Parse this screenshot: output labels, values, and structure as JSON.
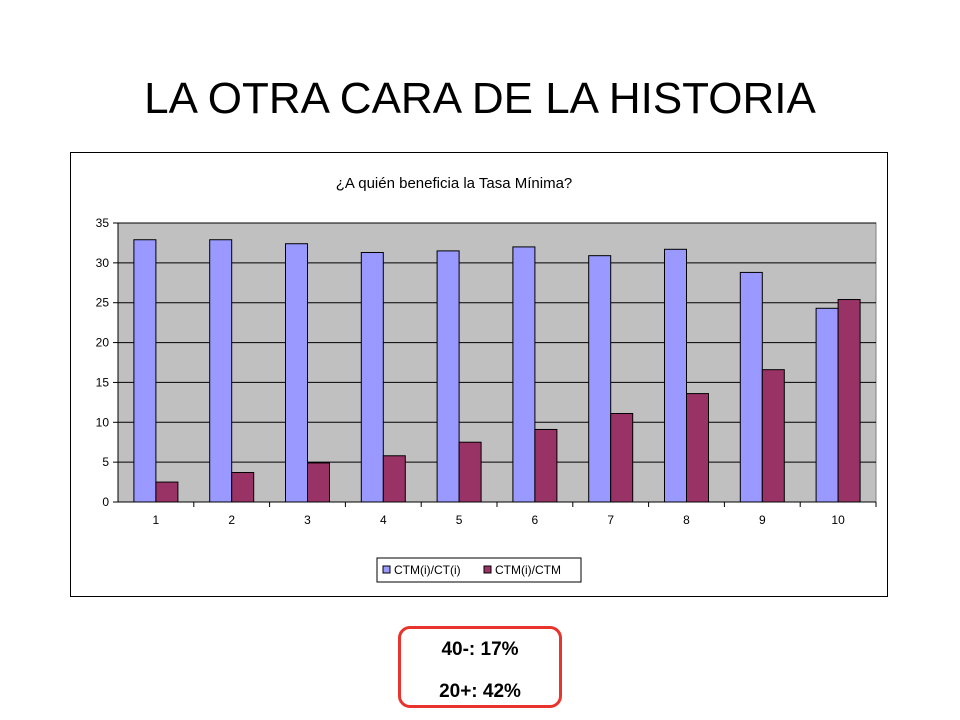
{
  "slide": {
    "title": "LA OTRA CARA DE LA HISTORIA"
  },
  "stats": {
    "line1": "40-: 17%",
    "line2": "20+: 42%"
  },
  "colors": {
    "series1": "#9999ff",
    "series2": "#993366",
    "plot_background": "#c0c0c0",
    "highlight_border": "#e8342c"
  },
  "chart_data": {
    "type": "bar",
    "title": "¿A quién beneficia la Tasa Mínima?",
    "xlabel": "",
    "ylabel": "",
    "categories": [
      "1",
      "2",
      "3",
      "4",
      "5",
      "6",
      "7",
      "8",
      "9",
      "10"
    ],
    "series": [
      {
        "name": "CTM(i)/CT(i)",
        "values": [
          32.9,
          32.9,
          32.4,
          31.3,
          31.5,
          32.0,
          30.9,
          31.7,
          28.8,
          24.3
        ]
      },
      {
        "name": "CTM(i)/CTM",
        "values": [
          2.5,
          3.7,
          4.9,
          5.8,
          7.5,
          9.1,
          11.1,
          13.6,
          16.6,
          25.4
        ]
      }
    ],
    "ylim": [
      0,
      35
    ],
    "yticks": [
      "0",
      "5",
      "10",
      "15",
      "20",
      "25",
      "30",
      "35"
    ],
    "grid": true,
    "legend_position": "bottom"
  }
}
